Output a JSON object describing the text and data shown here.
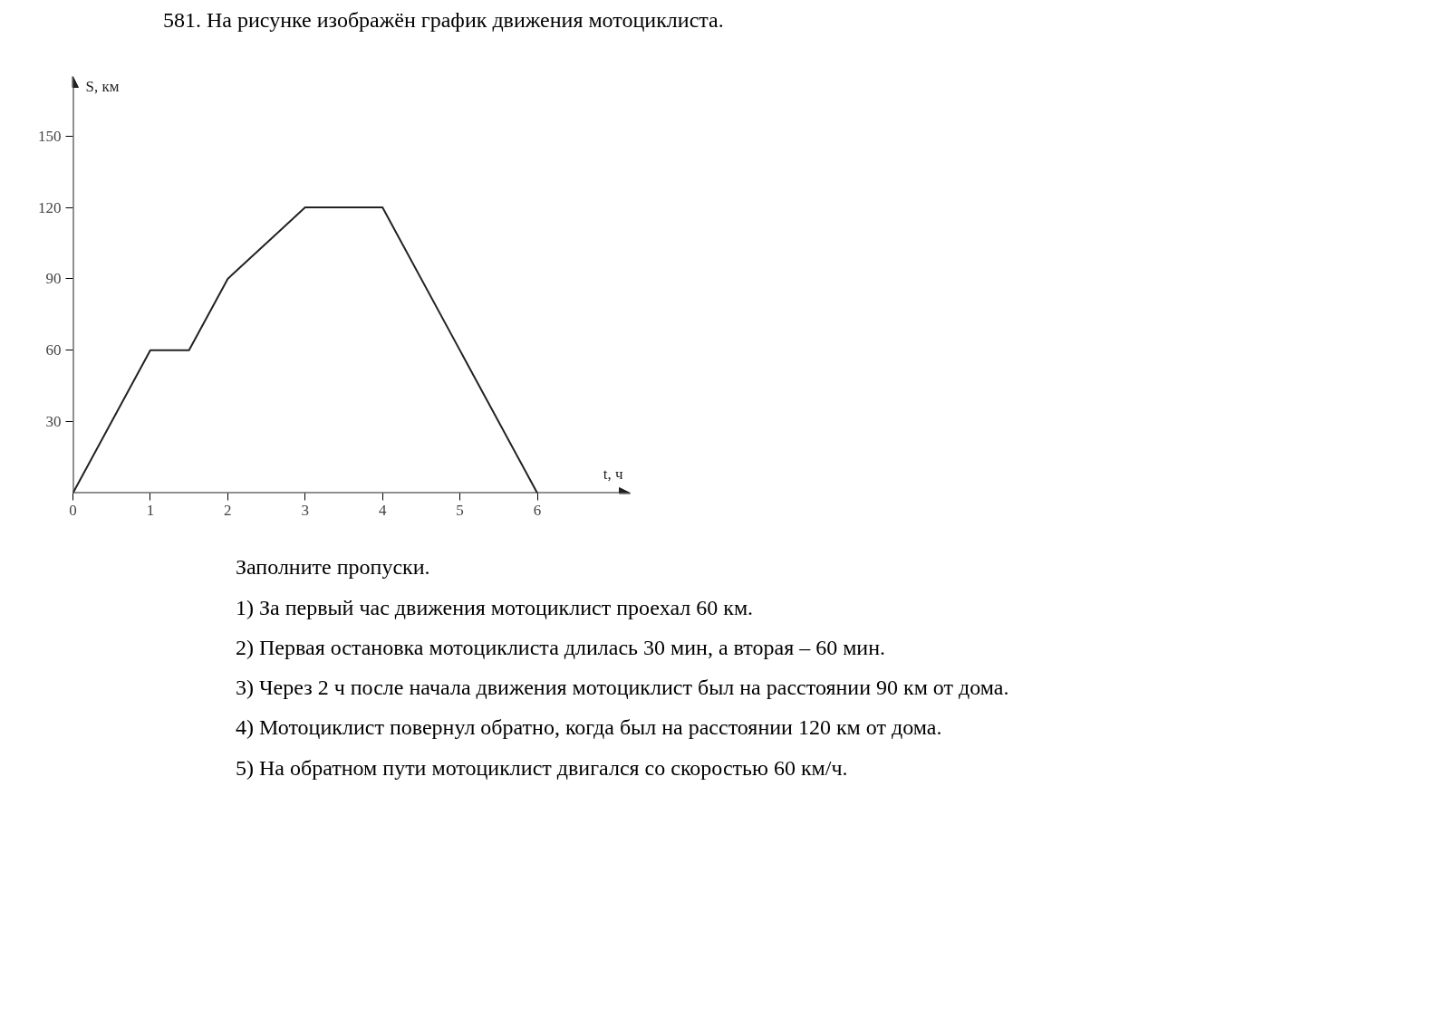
{
  "chart_data": {
    "type": "line",
    "title": "581. На рисунке изображён график движения мотоциклиста.",
    "xlabel": "t, ч",
    "ylabel": "S, км",
    "x": [
      0,
      1,
      1.5,
      2,
      3,
      4,
      6
    ],
    "series": [
      {
        "color": "#222222",
        "values": [
          0,
          60,
          60,
          90,
          120,
          120,
          0
        ]
      }
    ],
    "xlim": [
      0,
      7.2
    ],
    "ylim": [
      0,
      175
    ],
    "xticks": [
      0,
      1,
      2,
      3,
      4,
      5,
      6
    ],
    "yticks": [
      30,
      60,
      90,
      120,
      150
    ],
    "grid": false,
    "marker": "none",
    "line_style": "solid",
    "annotations": [
      "Заполните пропуски.",
      "1) За первый час движения мотоциклист проехал 60 км.",
      "2) Первая остановка мотоциклиста длилась 30 мин, а вторая – 60 мин.",
      "3) Через 2 ч после начала движения мотоциклист был на расстоянии 90 км от дома.",
      "4) Мотоциклист повернул обратно, когда был на расстоянии 120 км от дома.",
      "5) На обратном пути мотоциклист двигался со скоростью 60 км/ч."
    ]
  }
}
